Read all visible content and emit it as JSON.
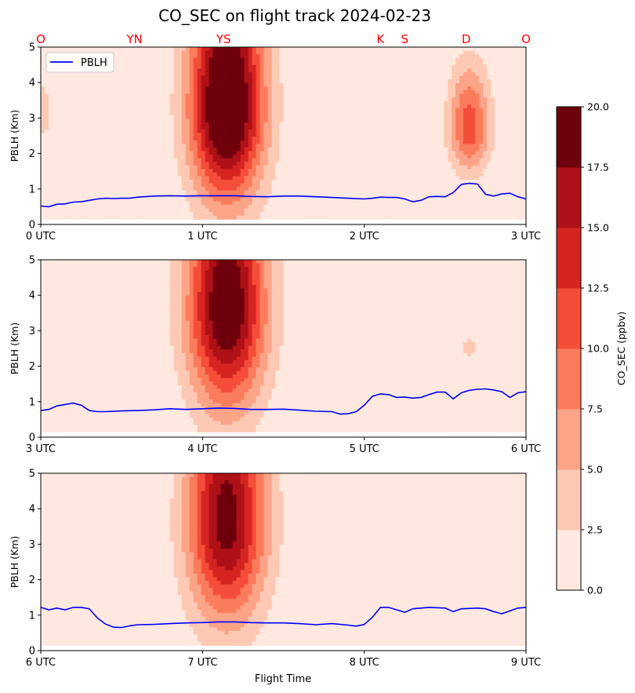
{
  "title": "CO_SEC on flight track 2024-02-23",
  "chart_data": {
    "type": "contourf",
    "xlabel": "Flight Time",
    "ylabel": "PBLH (Km)",
    "ylim": [
      0,
      5
    ],
    "yticks": [
      "0",
      "1",
      "2",
      "3",
      "4",
      "5"
    ],
    "legend": {
      "label": "PBLH",
      "location": "upper-left"
    },
    "waypoints": [
      {
        "label": "O",
        "t": 0.0
      },
      {
        "label": "YN",
        "t": 0.58
      },
      {
        "label": "YS",
        "t": 1.13
      },
      {
        "label": "K",
        "t": 2.1
      },
      {
        "label": "S",
        "t": 2.25
      },
      {
        "label": "D",
        "t": 2.63
      },
      {
        "label": "O",
        "t": 3.0
      }
    ],
    "colorbar": {
      "label": "CO_SEC (ppbv)",
      "levels": [
        0,
        2.5,
        5,
        7.5,
        10,
        12.5,
        15,
        17.5,
        20
      ],
      "ticks": [
        "0.0",
        "2.5",
        "5.0",
        "7.5",
        "10.0",
        "12.5",
        "15.0",
        "17.5",
        "20.0"
      ],
      "colors": [
        "#fee8df",
        "#fdc9b4",
        "#fca487",
        "#fb7c5c",
        "#f44d38",
        "#d52421",
        "#ae1117",
        "#6e010d"
      ]
    },
    "panels": [
      {
        "xrange": [
          0,
          3
        ],
        "xticks": [
          "0 UTC",
          "1 UTC",
          "2 UTC",
          "3 UTC"
        ],
        "pblh_color": "#0000ff",
        "pblh": [
          [
            0,
            0.52
          ],
          [
            0.05,
            0.5
          ],
          [
            0.1,
            0.57
          ],
          [
            0.15,
            0.58
          ],
          [
            0.2,
            0.63
          ],
          [
            0.25,
            0.64
          ],
          [
            0.3,
            0.68
          ],
          [
            0.35,
            0.72
          ],
          [
            0.4,
            0.74
          ],
          [
            0.45,
            0.73
          ],
          [
            0.5,
            0.74
          ],
          [
            0.55,
            0.74
          ],
          [
            0.6,
            0.77
          ],
          [
            0.7,
            0.8
          ],
          [
            0.8,
            0.81
          ],
          [
            0.9,
            0.8
          ],
          [
            1.0,
            0.81
          ],
          [
            1.1,
            0.81
          ],
          [
            1.2,
            0.81
          ],
          [
            1.3,
            0.79
          ],
          [
            1.4,
            0.78
          ],
          [
            1.5,
            0.8
          ],
          [
            1.6,
            0.8
          ],
          [
            1.7,
            0.78
          ],
          [
            1.8,
            0.76
          ],
          [
            1.9,
            0.74
          ],
          [
            2.0,
            0.72
          ],
          [
            2.05,
            0.74
          ],
          [
            2.1,
            0.77
          ],
          [
            2.15,
            0.76
          ],
          [
            2.2,
            0.76
          ],
          [
            2.25,
            0.72
          ],
          [
            2.3,
            0.64
          ],
          [
            2.35,
            0.68
          ],
          [
            2.4,
            0.78
          ],
          [
            2.45,
            0.79
          ],
          [
            2.5,
            0.78
          ],
          [
            2.55,
            0.9
          ],
          [
            2.6,
            1.13
          ],
          [
            2.65,
            1.16
          ],
          [
            2.7,
            1.14
          ],
          [
            2.75,
            0.85
          ],
          [
            2.8,
            0.8
          ],
          [
            2.85,
            0.86
          ],
          [
            2.9,
            0.88
          ],
          [
            2.95,
            0.78
          ],
          [
            3.0,
            0.72
          ]
        ],
        "plumes": [
          {
            "t": 1.15,
            "z": 3.3,
            "st": 0.16,
            "sz": 1.8,
            "amp": 24
          },
          {
            "t": 2.65,
            "z": 2.7,
            "st": 0.09,
            "sz": 0.85,
            "amp": 11.5
          },
          {
            "t": 0.0,
            "z": 3.1,
            "st": 0.07,
            "sz": 0.65,
            "amp": 3.4
          }
        ]
      },
      {
        "xrange": [
          3,
          6
        ],
        "xticks": [
          "3 UTC",
          "4 UTC",
          "5 UTC",
          "6 UTC"
        ],
        "pblh_color": "#0000ff",
        "pblh": [
          [
            3.0,
            0.75
          ],
          [
            3.05,
            0.78
          ],
          [
            3.1,
            0.88
          ],
          [
            3.15,
            0.92
          ],
          [
            3.2,
            0.96
          ],
          [
            3.25,
            0.9
          ],
          [
            3.3,
            0.75
          ],
          [
            3.35,
            0.72
          ],
          [
            3.4,
            0.72
          ],
          [
            3.5,
            0.74
          ],
          [
            3.6,
            0.75
          ],
          [
            3.7,
            0.77
          ],
          [
            3.8,
            0.8
          ],
          [
            3.9,
            0.78
          ],
          [
            4.0,
            0.8
          ],
          [
            4.1,
            0.82
          ],
          [
            4.2,
            0.81
          ],
          [
            4.3,
            0.78
          ],
          [
            4.4,
            0.78
          ],
          [
            4.5,
            0.79
          ],
          [
            4.6,
            0.76
          ],
          [
            4.7,
            0.73
          ],
          [
            4.8,
            0.72
          ],
          [
            4.85,
            0.65
          ],
          [
            4.9,
            0.66
          ],
          [
            4.95,
            0.72
          ],
          [
            5.0,
            0.9
          ],
          [
            5.05,
            1.15
          ],
          [
            5.1,
            1.22
          ],
          [
            5.15,
            1.2
          ],
          [
            5.2,
            1.12
          ],
          [
            5.25,
            1.13
          ],
          [
            5.3,
            1.1
          ],
          [
            5.35,
            1.12
          ],
          [
            5.4,
            1.2
          ],
          [
            5.45,
            1.27
          ],
          [
            5.5,
            1.27
          ],
          [
            5.55,
            1.08
          ],
          [
            5.6,
            1.25
          ],
          [
            5.65,
            1.32
          ],
          [
            5.7,
            1.35
          ],
          [
            5.75,
            1.36
          ],
          [
            5.8,
            1.33
          ],
          [
            5.85,
            1.28
          ],
          [
            5.9,
            1.12
          ],
          [
            5.95,
            1.25
          ],
          [
            6.0,
            1.28
          ]
        ],
        "plumes": [
          {
            "t": 4.15,
            "z": 3.6,
            "st": 0.17,
            "sz": 1.9,
            "amp": 21
          },
          {
            "t": 5.65,
            "z": 2.5,
            "st": 0.05,
            "sz": 0.35,
            "amp": 3.0
          }
        ]
      },
      {
        "xrange": [
          6,
          9
        ],
        "xticks": [
          "6 UTC",
          "7 UTC",
          "8 UTC",
          "9 UTC"
        ],
        "pblh_color": "#0000ff",
        "pblh": [
          [
            6.0,
            1.22
          ],
          [
            6.05,
            1.15
          ],
          [
            6.1,
            1.2
          ],
          [
            6.15,
            1.15
          ],
          [
            6.2,
            1.22
          ],
          [
            6.25,
            1.22
          ],
          [
            6.3,
            1.18
          ],
          [
            6.35,
            0.92
          ],
          [
            6.4,
            0.75
          ],
          [
            6.45,
            0.66
          ],
          [
            6.5,
            0.65
          ],
          [
            6.55,
            0.7
          ],
          [
            6.6,
            0.73
          ],
          [
            6.7,
            0.74
          ],
          [
            6.8,
            0.76
          ],
          [
            6.9,
            0.78
          ],
          [
            7.0,
            0.79
          ],
          [
            7.1,
            0.81
          ],
          [
            7.2,
            0.81
          ],
          [
            7.3,
            0.79
          ],
          [
            7.4,
            0.78
          ],
          [
            7.5,
            0.78
          ],
          [
            7.6,
            0.76
          ],
          [
            7.7,
            0.73
          ],
          [
            7.8,
            0.76
          ],
          [
            7.9,
            0.72
          ],
          [
            7.95,
            0.69
          ],
          [
            8.0,
            0.74
          ],
          [
            8.05,
            0.94
          ],
          [
            8.1,
            1.22
          ],
          [
            8.15,
            1.22
          ],
          [
            8.2,
            1.15
          ],
          [
            8.25,
            1.08
          ],
          [
            8.3,
            1.18
          ],
          [
            8.4,
            1.22
          ],
          [
            8.5,
            1.2
          ],
          [
            8.55,
            1.1
          ],
          [
            8.6,
            1.18
          ],
          [
            8.7,
            1.2
          ],
          [
            8.75,
            1.18
          ],
          [
            8.8,
            1.1
          ],
          [
            8.85,
            1.04
          ],
          [
            8.9,
            1.12
          ],
          [
            8.95,
            1.2
          ],
          [
            9.0,
            1.22
          ]
        ],
        "plumes": [
          {
            "t": 7.15,
            "z": 3.6,
            "st": 0.17,
            "sz": 1.9,
            "amp": 19
          }
        ]
      }
    ]
  }
}
